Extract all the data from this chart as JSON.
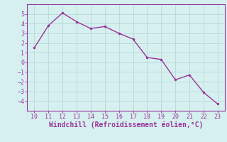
{
  "x": [
    10,
    11,
    12,
    13,
    14,
    15,
    16,
    17,
    18,
    19,
    20,
    21,
    22,
    23
  ],
  "y": [
    1.5,
    3.8,
    5.1,
    4.2,
    3.5,
    3.7,
    3.0,
    2.4,
    0.5,
    0.3,
    -1.8,
    -1.3,
    -3.1,
    -4.3
  ],
  "line_color": "#993399",
  "marker": "o",
  "marker_size": 2.0,
  "line_width": 1.0,
  "xlabel": "Windchill (Refroidissement éolien,°C)",
  "xlabel_color": "#993399",
  "background_color": "#d6f0f0",
  "grid_color": "#b8d8d8",
  "xlim": [
    9.5,
    23.5
  ],
  "ylim": [
    -5,
    6
  ],
  "xticks": [
    10,
    11,
    12,
    13,
    14,
    15,
    16,
    17,
    18,
    19,
    20,
    21,
    22,
    23
  ],
  "yticks": [
    -4,
    -3,
    -2,
    -1,
    0,
    1,
    2,
    3,
    4,
    5
  ],
  "tick_fontsize": 6,
  "xlabel_fontsize": 7,
  "tick_color": "#993399",
  "spine_color": "#993399"
}
